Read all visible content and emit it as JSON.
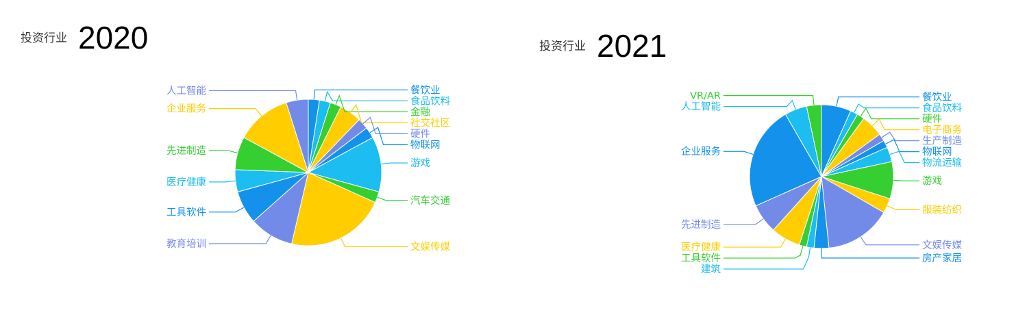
{
  "palette": [
    "#1492eb",
    "#1cbdf0",
    "#36cf32",
    "#ffcd00",
    "#738be8"
  ],
  "chart_data": [
    {
      "type": "pie",
      "subtitle": "投资行业",
      "title": "2020",
      "categories": [
        "餐饮业",
        "食品饮料",
        "金融",
        "社交社区",
        "硬件",
        "物联网",
        "游戏",
        "汽车交通",
        "文娱传媒",
        "教育培训",
        "工具软件",
        "医疗健康",
        "先进制造",
        "企业服务",
        "人工智能"
      ],
      "values": [
        1,
        1,
        1,
        2,
        1,
        1,
        5,
        1,
        9,
        4,
        3,
        2,
        3,
        5,
        2
      ],
      "start": "top",
      "direction": "clockwise",
      "legend": "none"
    },
    {
      "type": "pie",
      "subtitle": "投资行业",
      "title": "2021",
      "categories": [
        "餐饮业",
        "食品饮料",
        "硬件",
        "电子商务",
        "生产制造",
        "物联网",
        "物流运输",
        "游戏",
        "服装纺织",
        "文娱传媒",
        "房产家居",
        "建筑",
        "工具软件",
        "医疗健康",
        "先进制造",
        "企业服务",
        "人工智能",
        "VR/AR"
      ],
      "values": [
        4,
        1,
        1,
        3,
        1,
        1,
        2,
        5,
        2,
        9,
        2,
        1,
        1,
        4,
        4,
        14,
        3,
        2
      ],
      "start": "top",
      "direction": "clockwise",
      "legend": "none"
    }
  ]
}
